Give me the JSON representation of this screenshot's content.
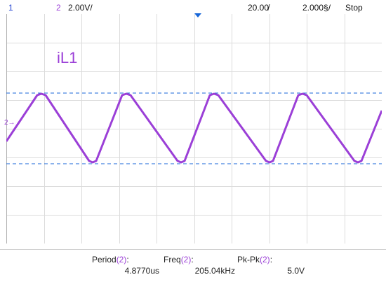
{
  "topbar": {
    "ch1": "1",
    "ch2": "2",
    "volts_per_div": "2.00V/",
    "time_per_div": "20.00̸",
    "trigger": "2.000§/",
    "run_state": "Stop"
  },
  "trace": {
    "label": "iL1",
    "color": "#9b3fd7",
    "ref_marker": "2→"
  },
  "cursor_color": "#1766d8",
  "measurements": [
    {
      "name": "Period",
      "channel": "(2)",
      "suffix": ":",
      "value": "4.8770us"
    },
    {
      "name": "Freq",
      "channel": "(2)",
      "suffix": ":",
      "value": "205.04kHz"
    },
    {
      "name": "Pk-Pk",
      "channel": "(2)",
      "suffix": ":",
      "value": "5.0V"
    }
  ]
}
